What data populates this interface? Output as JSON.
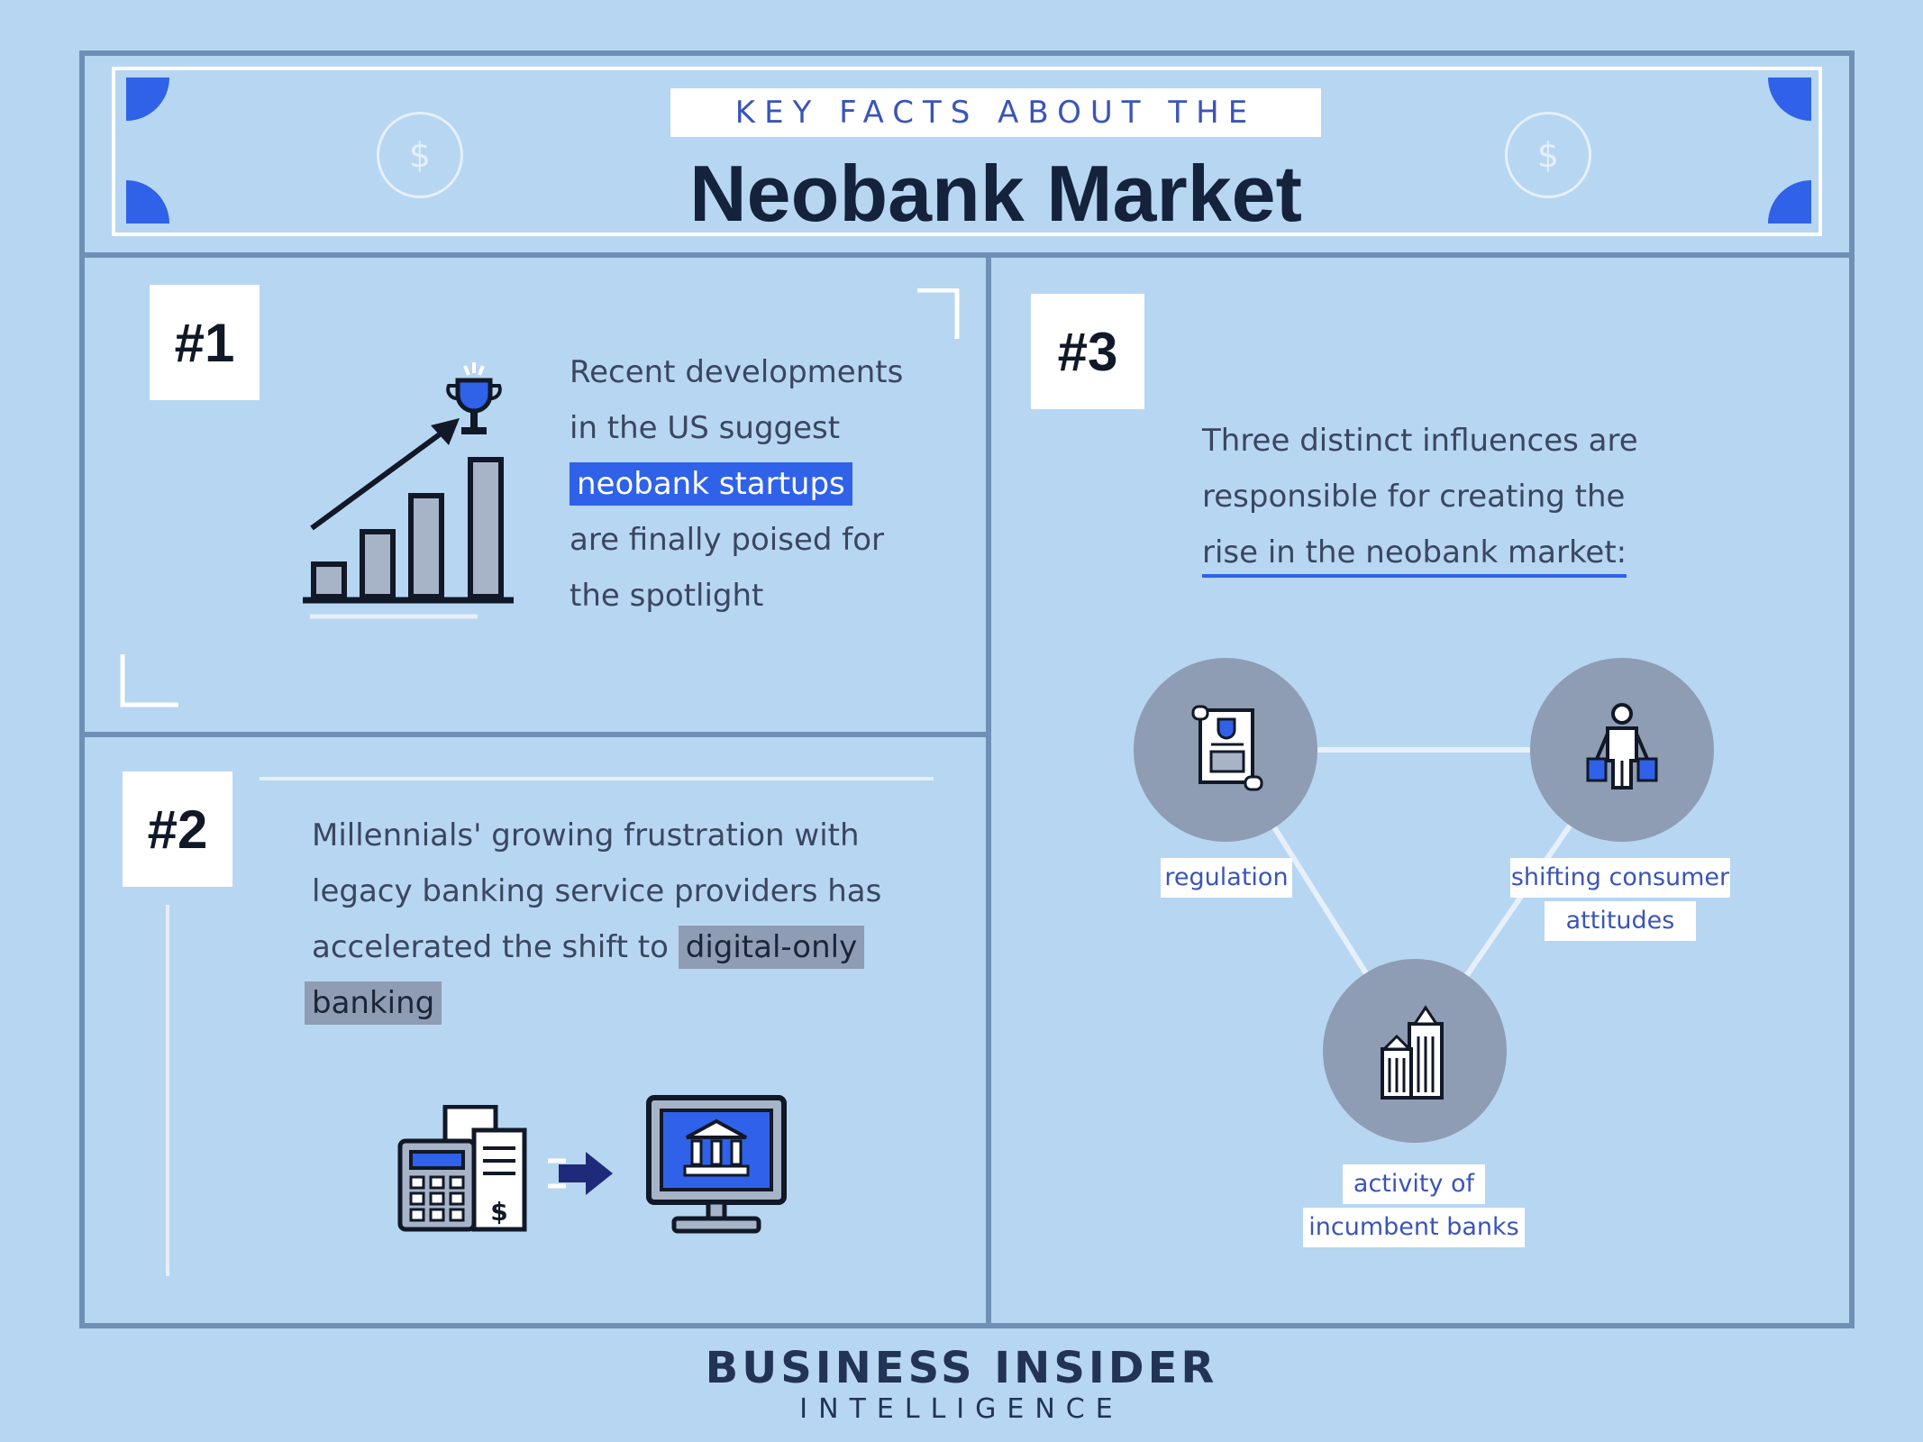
{
  "header": {
    "kicker": "KEY FACTS ABOUT THE",
    "title": "Neobank Market",
    "coin_symbol": "$"
  },
  "fact1": {
    "badge": "#1",
    "line1": "Recent developments",
    "line2": "in the US suggest",
    "highlight": "neobank startups",
    "line4": "are finally poised for",
    "line5": "the spotlight",
    "icon": "growth-chart-trophy-icon"
  },
  "fact2": {
    "badge": "#2",
    "line1": "Millennials' growing frustration with",
    "line2": "legacy banking service providers has",
    "line3_pre": "accelerated the shift to ",
    "highlight1": "digital-only",
    "highlight2": "banking",
    "icons": [
      "calculator-documents-icon",
      "arrow-right-icon",
      "online-bank-monitor-icon"
    ]
  },
  "fact3": {
    "badge": "#3",
    "line1": "Three distinct influences are",
    "line2": "responsible for creating the",
    "underlined": "rise in the neobank market:",
    "nodes": [
      {
        "label_lines": [
          "regulation"
        ],
        "icon": "regulation-document-icon"
      },
      {
        "label_lines": [
          "shifting consumer",
          "attitudes"
        ],
        "icon": "shopper-icon"
      },
      {
        "label_lines": [
          "activity of",
          "incumbent banks"
        ],
        "icon": "bank-buildings-icon"
      }
    ]
  },
  "footer": {
    "brand": "BUSINESS INSIDER",
    "sub": "INTELLIGENCE"
  },
  "colors": {
    "background": "#b7d6f1",
    "accent_blue": "#2f62e8",
    "frame": "#6f8fb5",
    "node_circle": "#8e9db3",
    "navy": "#14223c"
  }
}
